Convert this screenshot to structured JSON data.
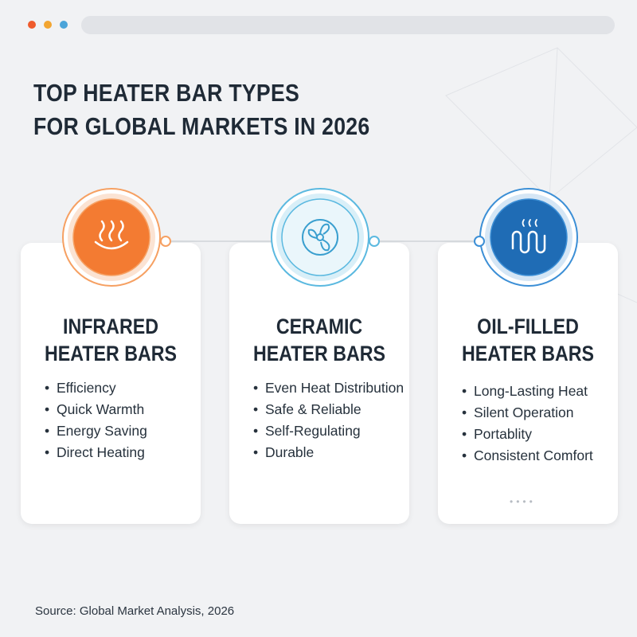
{
  "header": {
    "title_lines": [
      "TOP HEATER BAR TYPES",
      "FOR GLOBAL MARKETS IN 2026"
    ]
  },
  "cards": [
    {
      "title_lines": [
        "INFRARED",
        "HEATER BARS"
      ],
      "features": [
        "Efficiency",
        "Quick Warmth",
        "Energy Saving",
        "Direct Heating"
      ]
    },
    {
      "title_lines": [
        "CERAMIC",
        "HEATER BARS"
      ],
      "features": [
        "Even Heat Distribution",
        "Safe & Reliable",
        "Self-Regulating",
        "Durable"
      ]
    },
    {
      "title_lines": [
        "OIL-FILLED",
        "HEATER BARS"
      ],
      "features": [
        "Long-Lasting Heat",
        "Silent Operation",
        "Portablity",
        "Consistent Comfort"
      ]
    }
  ],
  "footer": {
    "source": "Source: Global Market Analysis, 2026"
  }
}
